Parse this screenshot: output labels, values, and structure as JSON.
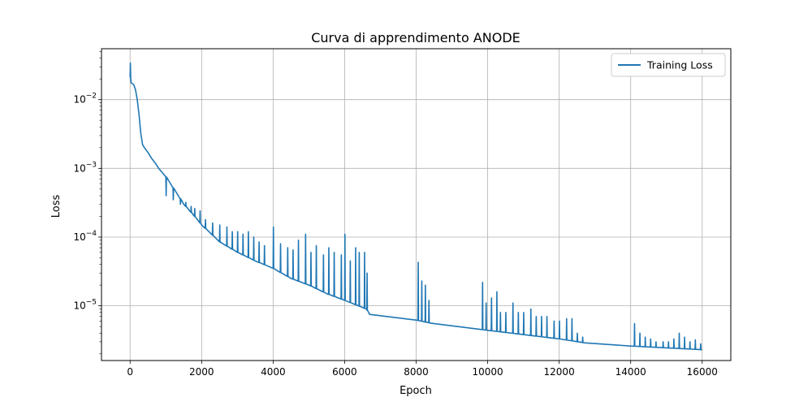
{
  "chart_data": {
    "type": "line",
    "title": "Curva di apprendimento ANODE",
    "xlabel": "Epoch",
    "ylabel": "Loss",
    "yscale": "log",
    "xlim": [
      -800,
      16800
    ],
    "ylim": [
      1.6e-06,
      0.055
    ],
    "xticks": [
      0,
      2000,
      4000,
      6000,
      8000,
      10000,
      12000,
      14000,
      16000
    ],
    "yticks": [
      {
        "value": 1e-05,
        "base": "10",
        "exp": "−5"
      },
      {
        "value": 0.0001,
        "base": "10",
        "exp": "−4"
      },
      {
        "value": 0.001,
        "base": "10",
        "exp": "−3"
      },
      {
        "value": 0.01,
        "base": "10",
        "exp": "−2"
      }
    ],
    "grid": true,
    "legend_position": "top-right",
    "color": "#1f77b4",
    "series": [
      {
        "name": "Training Loss",
        "baseline": [
          [
            0,
            0.021
          ],
          [
            30,
            0.0175
          ],
          [
            100,
            0.0165
          ],
          [
            150,
            0.014
          ],
          [
            200,
            0.01
          ],
          [
            250,
            0.006
          ],
          [
            300,
            0.0032
          ],
          [
            350,
            0.0022
          ],
          [
            400,
            0.002
          ],
          [
            500,
            0.0017
          ],
          [
            600,
            0.0014
          ],
          [
            700,
            0.0012
          ],
          [
            800,
            0.001
          ],
          [
            1000,
            0.00075
          ],
          [
            1200,
            0.00052
          ],
          [
            1500,
            0.0003
          ],
          [
            1800,
            0.0002
          ],
          [
            2000,
            0.00015
          ],
          [
            2500,
            8.5e-05
          ],
          [
            3000,
            6e-05
          ],
          [
            3500,
            4.5e-05
          ],
          [
            4000,
            3.5e-05
          ],
          [
            4500,
            2.5e-05
          ],
          [
            5000,
            2e-05
          ],
          [
            5500,
            1.5e-05
          ],
          [
            6000,
            1.2e-05
          ],
          [
            6600,
            9e-06
          ],
          [
            6700,
            7.5e-06
          ],
          [
            8000,
            6.2e-06
          ],
          [
            8400,
            5.6e-06
          ],
          [
            10000,
            4.4e-06
          ],
          [
            12000,
            3.3e-06
          ],
          [
            12700,
            2.9e-06
          ],
          [
            14000,
            2.6e-06
          ],
          [
            16000,
            2.3e-06
          ]
        ],
        "spikes": [
          [
            0,
            0.034
          ],
          [
            1000,
            0.0004
          ],
          [
            1200,
            0.00035
          ],
          [
            1400,
            0.0003
          ],
          [
            1550,
            0.00032
          ],
          [
            1700,
            0.00028
          ],
          [
            1800,
            0.00026
          ],
          [
            1950,
            0.00024
          ],
          [
            2100,
            0.00018
          ],
          [
            2300,
            0.00016
          ],
          [
            2500,
            0.00015
          ],
          [
            2700,
            0.00014
          ],
          [
            2850,
            0.00012
          ],
          [
            3000,
            0.00012
          ],
          [
            3150,
            0.00011
          ],
          [
            3300,
            0.00012
          ],
          [
            3450,
            0.0001
          ],
          [
            3600,
            8.5e-05
          ],
          [
            3750,
            7.5e-05
          ],
          [
            4000,
            0.00014
          ],
          [
            4200,
            8e-05
          ],
          [
            4400,
            7e-05
          ],
          [
            4550,
            6.5e-05
          ],
          [
            4700,
            9e-05
          ],
          [
            4900,
            0.00011
          ],
          [
            5050,
            6e-05
          ],
          [
            5200,
            7.5e-05
          ],
          [
            5400,
            5.5e-05
          ],
          [
            5550,
            7e-05
          ],
          [
            5700,
            6e-05
          ],
          [
            5900,
            5.5e-05
          ],
          [
            6000,
            0.00011
          ],
          [
            6150,
            4.5e-05
          ],
          [
            6300,
            7e-05
          ],
          [
            6400,
            6e-05
          ],
          [
            6550,
            6e-05
          ],
          [
            6620,
            3e-05
          ],
          [
            8050,
            4.3e-05
          ],
          [
            8150,
            2.3e-05
          ],
          [
            8250,
            2e-05
          ],
          [
            8350,
            1.2e-05
          ],
          [
            9850,
            2.2e-05
          ],
          [
            9950,
            1.1e-05
          ],
          [
            10100,
            1.3e-05
          ],
          [
            10250,
            1.6e-05
          ],
          [
            10350,
            8e-06
          ],
          [
            10500,
            8e-06
          ],
          [
            10700,
            1.1e-05
          ],
          [
            10850,
            8e-06
          ],
          [
            11000,
            8e-06
          ],
          [
            11200,
            9e-06
          ],
          [
            11350,
            7e-06
          ],
          [
            11500,
            7e-06
          ],
          [
            11650,
            7e-06
          ],
          [
            11850,
            6e-06
          ],
          [
            12000,
            6e-06
          ],
          [
            12200,
            6.5e-06
          ],
          [
            12350,
            6.5e-06
          ],
          [
            12500,
            4e-06
          ],
          [
            12650,
            3.5e-06
          ],
          [
            14100,
            5.5e-06
          ],
          [
            14250,
            4e-06
          ],
          [
            14400,
            3.5e-06
          ],
          [
            14550,
            3.3e-06
          ],
          [
            14700,
            3e-06
          ],
          [
            14900,
            3e-06
          ],
          [
            15050,
            3e-06
          ],
          [
            15200,
            3.3e-06
          ],
          [
            15350,
            4e-06
          ],
          [
            15500,
            3.5e-06
          ],
          [
            15650,
            3e-06
          ],
          [
            15800,
            3.2e-06
          ],
          [
            15950,
            2.8e-06
          ]
        ]
      }
    ]
  }
}
